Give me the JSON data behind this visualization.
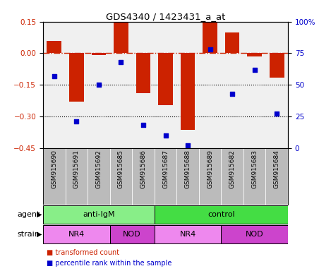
{
  "title": "GDS4340 / 1423431_a_at",
  "samples": [
    "GSM915690",
    "GSM915691",
    "GSM915692",
    "GSM915685",
    "GSM915686",
    "GSM915687",
    "GSM915688",
    "GSM915689",
    "GSM915682",
    "GSM915683",
    "GSM915684"
  ],
  "bar_values": [
    0.06,
    -0.23,
    -0.01,
    0.145,
    -0.19,
    -0.245,
    -0.365,
    0.145,
    0.1,
    -0.015,
    -0.115
  ],
  "dot_values": [
    57,
    21,
    50,
    68,
    18,
    10,
    2,
    78,
    43,
    62,
    27
  ],
  "ylim_left": [
    -0.45,
    0.15
  ],
  "ylim_right": [
    0,
    100
  ],
  "yticks_left": [
    0.15,
    0.0,
    -0.15,
    -0.3,
    -0.45
  ],
  "yticks_right": [
    100,
    75,
    50,
    25,
    0
  ],
  "bar_color": "#cc2200",
  "dot_color": "#0000cc",
  "dashed_line_color": "#cc2200",
  "dotted_line_color": "#000000",
  "agent_segments": [
    {
      "label": "anti-IgM",
      "start": 0,
      "end": 5
    },
    {
      "label": "control",
      "start": 5,
      "end": 11
    }
  ],
  "agent_color": "#88ee88",
  "agent_color2": "#44dd44",
  "strain_segments": [
    {
      "label": "NR4",
      "start": 0,
      "end": 3,
      "color": "#ee88ee"
    },
    {
      "label": "NOD",
      "start": 3,
      "end": 5,
      "color": "#cc44cc"
    },
    {
      "label": "NR4",
      "start": 5,
      "end": 8,
      "color": "#ee88ee"
    },
    {
      "label": "NOD",
      "start": 8,
      "end": 11,
      "color": "#cc44cc"
    }
  ],
  "agent_row_label": "agent",
  "strain_row_label": "strain",
  "legend_bar_label": "transformed count",
  "legend_dot_label": "percentile rank within the sample",
  "tick_label_color_left": "#cc2200",
  "tick_label_color_right": "#0000cc",
  "background_color": "#ffffff",
  "xlabel_bg": "#bbbbbb",
  "plot_bg": "#f0f0f0"
}
